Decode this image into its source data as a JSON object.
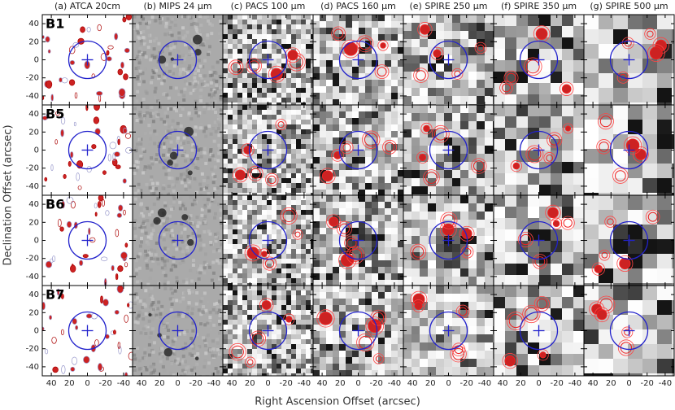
{
  "columns": [
    "(a) ATCA 20cm",
    "(b) MIPS 24 μm",
    "(c) PACS 100 μm",
    "(d) PACS 160 μm",
    "(e) SPIRE 250 μm",
    "(f) SPIRE 350 μm",
    "(g) SPIRE 500 μm"
  ],
  "rows": [
    "B1",
    "B5",
    "B6",
    "B7"
  ],
  "xlim": [
    50,
    -50
  ],
  "ylim": [
    -50,
    50
  ],
  "xticks": [
    40,
    20,
    0,
    -20,
    -40
  ],
  "yticks": [
    40,
    20,
    0,
    -20,
    -40
  ],
  "xlabel": "Right Ascension Offset (arcsec)",
  "ylabel": "Declination Offset (arcsec)"
}
